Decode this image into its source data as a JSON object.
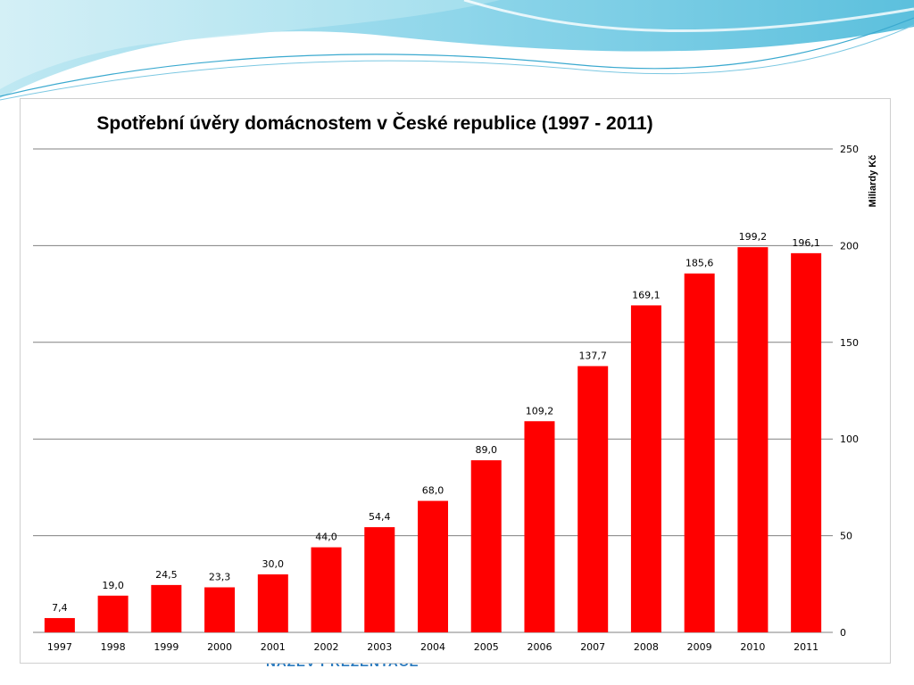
{
  "slide": {
    "footer_text": "NÁZEV PREZENTACE"
  },
  "colors": {
    "bar": "#ff0000",
    "gridline": "#808080",
    "wave_light": "#bfe8f2",
    "wave_mid": "#7fd0e6",
    "wave_dark": "#4fb8da"
  },
  "chart_data": {
    "type": "bar",
    "title": "Spotřební úvěry domácnostem v České republice (1997 - 2011)",
    "xlabel": "",
    "ylabel": "Miliardy Kč",
    "y_axis_side": "right",
    "ylim": [
      0,
      250
    ],
    "yticks": [
      0,
      50,
      100,
      150,
      200,
      250
    ],
    "grid": true,
    "legend": "none",
    "categories": [
      "1997",
      "1998",
      "1999",
      "2000",
      "2001",
      "2002",
      "2003",
      "2004",
      "2005",
      "2006",
      "2007",
      "2008",
      "2009",
      "2010",
      "2011"
    ],
    "values": [
      7.4,
      19.0,
      24.5,
      23.3,
      30.0,
      44.0,
      54.4,
      68.0,
      89.0,
      109.2,
      137.7,
      169.1,
      185.6,
      199.2,
      196.1
    ],
    "data_labels": [
      "7,4",
      "19,0",
      "24,5",
      "23,3",
      "30,0",
      "44,0",
      "54,4",
      "68,0",
      "89,0",
      "109,2",
      "137,7",
      "169,1",
      "185,6",
      "199,2",
      "196,1"
    ]
  }
}
